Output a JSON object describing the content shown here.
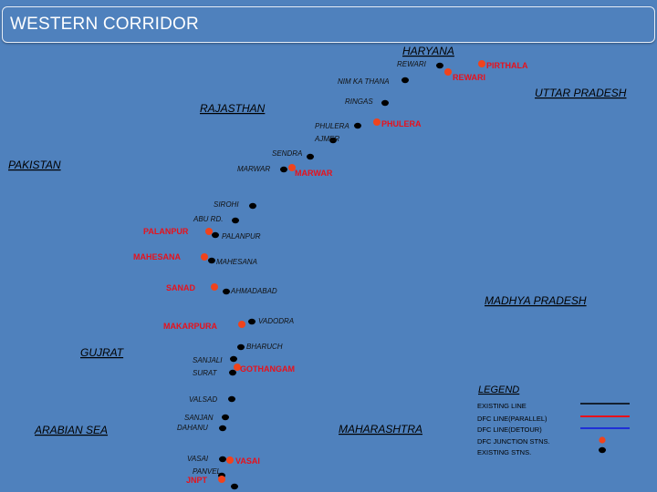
{
  "title": "WESTERN CORRIDOR",
  "regions": {
    "haryana": "HARYANA",
    "uttar_pradesh": "UTTAR PRADESH",
    "rajasthan": "RAJASTHAN",
    "pakistan": "PAKISTAN",
    "madhya_pradesh": "MADHYA PRADESH",
    "gujrat": "GUJRAT",
    "arabian_sea": "ARABIAN SEA",
    "maharashtra": "MAHARASHTRA"
  },
  "existing_stations": {
    "rewari": "REWARI",
    "nim_ka_thana": "NIM KA THANA",
    "ringas": "RINGAS",
    "phulera": "PHULERA",
    "ajmer": "AJMER",
    "sendra": "SENDRA",
    "marwar": "MARWAR",
    "sirohi": "SIROHI",
    "abu_rd": "ABU RD.",
    "palanpur": "PALANPUR",
    "mahesana": "MAHESANA",
    "ahmadabad": "AHMADABAD",
    "vadodra": "VADODRA",
    "bharuch": "BHARUCH",
    "sanjali": "SANJALI",
    "surat": "SURAT",
    "valsad": "VALSAD",
    "sanjan": "SANJAN",
    "dahanu": "DAHANU",
    "vasai": "VASAI",
    "panvel": "PANVEL"
  },
  "dfc_junctions": {
    "pirthala": "PIRTHALA",
    "rewari": "REWARI",
    "phulera": "PHULERA",
    "marwar": "MARWAR",
    "palanpur": "PALANPUR",
    "mahesana": "MAHESANA",
    "sanad": "SANAD",
    "makarpura": "MAKARPURA",
    "gothangam": "GOTHANGAM",
    "vasai": "VASAI",
    "jnpt": "JNPT"
  },
  "legend": {
    "title": "LEGEND",
    "items": [
      {
        "label": "EXISTING LINE",
        "swatch": "line",
        "color": "#000000"
      },
      {
        "label": "DFC LINE(PARALLEL)",
        "swatch": "line",
        "color": "#e8111b"
      },
      {
        "label": "DFC LINE(DETOUR)",
        "swatch": "line",
        "color": "#1f2fd6"
      },
      {
        "label": "DFC JUNCTION STNS.",
        "swatch": "dot",
        "color": "#f0431c"
      },
      {
        "label": "EXISTING STNS.",
        "swatch": "dot",
        "color": "#000000"
      }
    ]
  },
  "colors": {
    "background": "#4f81bd",
    "junction_dot": "#f0431c",
    "junction_text": "#e8111b",
    "existing_dot": "#000000"
  }
}
